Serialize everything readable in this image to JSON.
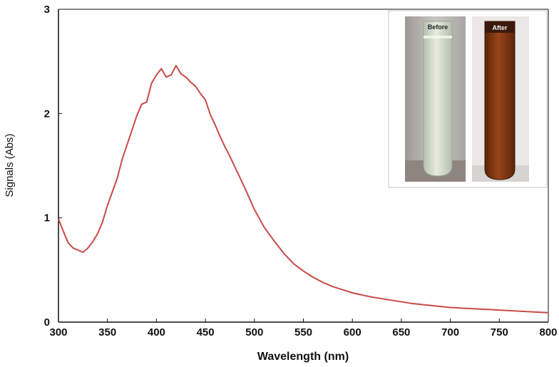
{
  "chart_data": {
    "type": "line",
    "title": "",
    "xlabel": "Wavelength (nm)",
    "ylabel": "Signals (Abs)",
    "xlim": [
      300,
      800
    ],
    "ylim": [
      0,
      3
    ],
    "xticks": [
      300,
      350,
      400,
      450,
      500,
      550,
      600,
      650,
      700,
      750,
      800
    ],
    "yticks": [
      0,
      1,
      2,
      3
    ],
    "grid": false,
    "line_color": "#c94a46",
    "series": [
      {
        "x": [
          300,
          305,
          310,
          315,
          320,
          325,
          330,
          335,
          340,
          345,
          350,
          355,
          360,
          365,
          370,
          375,
          380,
          385,
          390,
          395,
          400,
          405,
          410,
          415,
          420,
          425,
          430,
          435,
          440,
          445,
          450,
          455,
          460,
          465,
          470,
          475,
          480,
          490,
          500,
          510,
          520,
          530,
          540,
          550,
          560,
          570,
          580,
          590,
          600,
          620,
          640,
          660,
          680,
          700,
          720,
          740,
          760,
          780,
          800
        ],
        "y": [
          0.99,
          0.87,
          0.76,
          0.71,
          0.69,
          0.67,
          0.71,
          0.77,
          0.85,
          0.96,
          1.12,
          1.25,
          1.38,
          1.56,
          1.7,
          1.84,
          1.98,
          2.09,
          2.11,
          2.29,
          2.37,
          2.43,
          2.35,
          2.37,
          2.46,
          2.38,
          2.35,
          2.3,
          2.26,
          2.19,
          2.13,
          1.99,
          1.89,
          1.78,
          1.68,
          1.59,
          1.49,
          1.29,
          1.08,
          0.91,
          0.78,
          0.66,
          0.56,
          0.49,
          0.43,
          0.38,
          0.34,
          0.31,
          0.28,
          0.24,
          0.21,
          0.18,
          0.16,
          0.14,
          0.13,
          0.12,
          0.11,
          0.1,
          0.09
        ]
      }
    ]
  },
  "inset": {
    "tube_before_label": "Before",
    "tube_after_label": "After",
    "before_color": "#d9e2cf",
    "after_color": "#8a3a12"
  }
}
